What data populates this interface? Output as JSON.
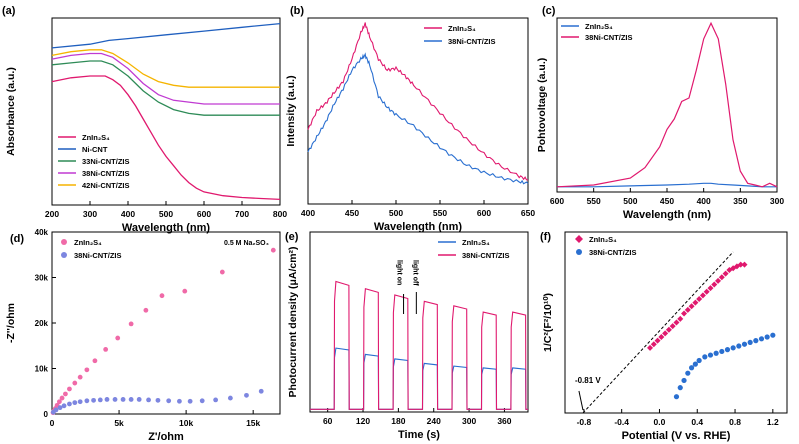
{
  "panels": [
    {
      "letter": "(a)",
      "xlabel": "Wavelength (nm)",
      "ylabel": "Absorbance (a.u.)",
      "xticks": [
        "200",
        "300",
        "400",
        "500",
        "600",
        "700",
        "800"
      ],
      "yticks": []
    },
    {
      "letter": "(b)",
      "xlabel": "Wavelength (nm)",
      "ylabel": "Intensity (a.u.)",
      "xticks": [
        "400",
        "450",
        "500",
        "550",
        "600",
        "650"
      ],
      "yticks": []
    },
    {
      "letter": "(c)",
      "xlabel": "Wavelength (nm)",
      "ylabel": "Pohtovoltage (a.u.)",
      "xticks": [
        "600",
        "550",
        "500",
        "450",
        "400",
        "350",
        "300"
      ],
      "yticks": []
    },
    {
      "letter": "(d)",
      "xlabel": "Z'/ohm",
      "ylabel": "-Z''/ohm",
      "xticks": [
        "0",
        "5k",
        "10k",
        "15k"
      ],
      "yticks": [
        "0",
        "10k",
        "20k",
        "30k",
        "40k"
      ]
    },
    {
      "letter": "(e)",
      "xlabel": "Time (s)",
      "ylabel": "Photocurrent density (μA/cm²)",
      "xticks": [
        "60",
        "120",
        "180",
        "240",
        "300",
        "360"
      ],
      "yticks": []
    },
    {
      "letter": "(f)",
      "xlabel": "Potential (V vs. RHE)",
      "ylabel": "1/C²(F²/10¹⁰)",
      "xticks": [
        "-0.8",
        "-0.4",
        "0.0",
        "0.4",
        "0.8",
        "1.2"
      ],
      "yticks": []
    }
  ],
  "colors": {
    "znins": "#e0196e",
    "cnt38": "#2a6fd0",
    "nicnt": "#1f5fbf",
    "cnt33": "#2e8b57",
    "cnt38a": "#c03ad2",
    "cnt42": "#f5b400",
    "d_znins": "#f06aa8",
    "d_cnt38": "#7d86e0"
  },
  "chart_data": [
    {
      "type": "line",
      "title": "(a)",
      "xlabel": "Wavelength (nm)",
      "ylabel": "Absorbance (a.u.)",
      "xlim": [
        200,
        800
      ],
      "ylim": [
        0,
        1
      ],
      "legend_placement": "bottom-left",
      "series": [
        {
          "name": "ZnIn2S4",
          "color_key": "znins",
          "x": [
            200,
            250,
            300,
            340,
            360,
            380,
            400,
            420,
            440,
            460,
            480,
            500,
            520,
            540,
            560,
            580,
            600,
            650,
            700,
            750,
            800
          ],
          "y": [
            0.66,
            0.68,
            0.69,
            0.69,
            0.67,
            0.64,
            0.59,
            0.53,
            0.46,
            0.39,
            0.32,
            0.26,
            0.21,
            0.16,
            0.12,
            0.09,
            0.07,
            0.05,
            0.04,
            0.035,
            0.03
          ]
        },
        {
          "name": "Ni-CNT",
          "color_key": "nicnt",
          "x": [
            200,
            300,
            350,
            400,
            500,
            600,
            700,
            800
          ],
          "y": [
            0.84,
            0.86,
            0.88,
            0.89,
            0.91,
            0.93,
            0.95,
            0.97
          ]
        },
        {
          "name": "33Ni-CNT/ZIS",
          "color_key": "cnt33",
          "x": [
            200,
            250,
            300,
            330,
            360,
            400,
            440,
            480,
            520,
            560,
            600,
            650,
            700,
            800
          ],
          "y": [
            0.75,
            0.76,
            0.77,
            0.77,
            0.75,
            0.69,
            0.61,
            0.55,
            0.51,
            0.49,
            0.48,
            0.48,
            0.48,
            0.48
          ]
        },
        {
          "name": "38Ni-CNT/ZIS",
          "color_key": "cnt38a",
          "x": [
            200,
            250,
            300,
            330,
            360,
            400,
            440,
            480,
            520,
            560,
            600,
            650,
            700,
            800
          ],
          "y": [
            0.78,
            0.8,
            0.81,
            0.81,
            0.79,
            0.73,
            0.65,
            0.59,
            0.56,
            0.55,
            0.54,
            0.54,
            0.54,
            0.54
          ]
        },
        {
          "name": "42Ni-CNT/ZIS",
          "color_key": "cnt42",
          "x": [
            200,
            250,
            300,
            330,
            360,
            400,
            440,
            480,
            520,
            560,
            600,
            650,
            700,
            800
          ],
          "y": [
            0.8,
            0.82,
            0.83,
            0.83,
            0.81,
            0.76,
            0.7,
            0.66,
            0.64,
            0.63,
            0.63,
            0.63,
            0.63,
            0.63
          ]
        }
      ]
    },
    {
      "type": "line",
      "title": "(b)",
      "xlabel": "Wavelength (nm)",
      "ylabel": "Intensity (a.u.)",
      "xlim": [
        400,
        650
      ],
      "ylim": [
        0,
        1
      ],
      "legend_placement": "top-right",
      "series": [
        {
          "name": "ZnIn2S4",
          "color_key": "znins",
          "x": [
            400,
            410,
            420,
            430,
            440,
            450,
            460,
            465,
            470,
            480,
            490,
            500,
            510,
            520,
            540,
            560,
            580,
            600,
            620,
            640,
            650
          ],
          "y": [
            0.4,
            0.5,
            0.54,
            0.6,
            0.66,
            0.78,
            0.92,
            0.97,
            0.9,
            0.78,
            0.72,
            0.73,
            0.69,
            0.64,
            0.54,
            0.44,
            0.35,
            0.27,
            0.2,
            0.15,
            0.13
          ]
        },
        {
          "name": "38Ni-CNT/ZIS",
          "color_key": "cnt38",
          "x": [
            400,
            410,
            420,
            430,
            440,
            450,
            460,
            465,
            470,
            480,
            490,
            500,
            520,
            540,
            560,
            580,
            600,
            620,
            640,
            650
          ],
          "y": [
            0.28,
            0.36,
            0.44,
            0.54,
            0.62,
            0.72,
            0.78,
            0.8,
            0.75,
            0.58,
            0.52,
            0.48,
            0.42,
            0.34,
            0.27,
            0.21,
            0.17,
            0.14,
            0.12,
            0.11
          ]
        }
      ]
    },
    {
      "type": "line",
      "title": "(c)",
      "xlabel": "Wavelength (nm)",
      "ylabel": "Pohtovoltage (a.u.)",
      "xlim": [
        600,
        300
      ],
      "ylim": [
        0,
        1
      ],
      "legend_placement": "top-left",
      "series": [
        {
          "name": "ZnIn2S4",
          "color_key": "cnt38",
          "x": [
            600,
            550,
            500,
            450,
            420,
            400,
            390,
            380,
            360,
            340,
            320,
            300
          ],
          "y": [
            0.03,
            0.03,
            0.035,
            0.04,
            0.045,
            0.05,
            0.05,
            0.045,
            0.04,
            0.035,
            0.03,
            0.03
          ]
        },
        {
          "name": "38Ni-CNT/ZIS",
          "color_key": "znins",
          "x": [
            600,
            550,
            500,
            480,
            460,
            450,
            440,
            430,
            420,
            410,
            400,
            390,
            380,
            370,
            360,
            350,
            340,
            330,
            320,
            310,
            300
          ],
          "y": [
            0.03,
            0.04,
            0.08,
            0.14,
            0.26,
            0.36,
            0.42,
            0.52,
            0.54,
            0.7,
            0.88,
            0.97,
            0.88,
            0.62,
            0.3,
            0.12,
            0.05,
            0.04,
            0.03,
            0.05,
            0.03
          ]
        }
      ]
    },
    {
      "type": "scatter",
      "title": "(d)",
      "xlabel": "Z'/ohm",
      "ylabel": "-Z''/ohm",
      "annotation": "0.5 M Na2SO4",
      "xlim": [
        0,
        17000
      ],
      "ylim": [
        0,
        40000
      ],
      "legend_placement": "top-left",
      "series": [
        {
          "name": "ZnIn2S4",
          "color_key": "d_znins",
          "x": [
            80,
            150,
            250,
            380,
            550,
            750,
            1000,
            1300,
            1700,
            2100,
            2600,
            3200,
            4000,
            4900,
            5900,
            7000,
            8200,
            9900,
            12700,
            16500
          ],
          "y": [
            300,
            700,
            1200,
            1900,
            2700,
            3500,
            4400,
            5500,
            6800,
            8100,
            9700,
            11700,
            14200,
            16700,
            19800,
            22800,
            26000,
            27000,
            31200,
            36000
          ]
        },
        {
          "name": "38Ni-CNT/ZIS",
          "color_key": "d_cnt38",
          "x": [
            100,
            300,
            600,
            900,
            1300,
            1700,
            2100,
            2600,
            3100,
            3600,
            4100,
            4700,
            5300,
            5900,
            6500,
            7200,
            7900,
            8700,
            9500,
            10300,
            11200,
            12200,
            13300,
            14500,
            15600
          ],
          "y": [
            400,
            900,
            1400,
            1800,
            2200,
            2500,
            2700,
            2900,
            3000,
            3100,
            3200,
            3200,
            3200,
            3200,
            3200,
            3100,
            3000,
            2900,
            2800,
            2800,
            2900,
            3100,
            3500,
            4100,
            5000
          ]
        }
      ]
    },
    {
      "type": "line",
      "title": "(e)",
      "xlabel": "Time (s)",
      "ylabel": "Photocurrent density (μA/cm²)",
      "xlim": [
        30,
        400
      ],
      "ylim": [
        0,
        20
      ],
      "annotations": [
        "light on",
        "light off"
      ],
      "legend_placement": "top-right",
      "series": [
        {
          "name": "ZnIn2S4",
          "color_key": "cnt38",
          "on_off": [
            [
              75,
              100
            ],
            [
              125,
              150
            ],
            [
              175,
              200
            ],
            [
              225,
              250
            ],
            [
              275,
              300
            ],
            [
              325,
              350
            ],
            [
              375,
              400
            ]
          ],
          "plateau": [
            7.1,
            6.4,
            5.9,
            5.4,
            5.1,
            4.9,
            4.9
          ],
          "baseline": 0.3
        },
        {
          "name": "38Ni-CNT/ZIS",
          "color_key": "znins",
          "on_off": [
            [
              75,
              100
            ],
            [
              125,
              150
            ],
            [
              175,
              200
            ],
            [
              225,
              250
            ],
            [
              275,
              300
            ],
            [
              325,
              350
            ],
            [
              375,
              400
            ]
          ],
          "plateau": [
            14.5,
            13.7,
            13.0,
            12.3,
            11.8,
            11.1,
            11.1
          ],
          "baseline": 0.3
        }
      ]
    },
    {
      "type": "scatter",
      "title": "(f)",
      "xlabel": "Potential (V vs. RHE)",
      "ylabel": "1/C²(F²/10¹⁰)",
      "annotation": "-0.81 V",
      "xlim": [
        -1.0,
        1.35
      ],
      "ylim": [
        0,
        10
      ],
      "legend_placement": "top-left",
      "series": [
        {
          "name": "ZnIn2S4",
          "color_key": "znins",
          "x": [
            -0.1,
            -0.06,
            -0.02,
            0.02,
            0.06,
            0.1,
            0.14,
            0.18,
            0.22,
            0.26,
            0.3,
            0.34,
            0.38,
            0.42,
            0.46,
            0.5,
            0.54,
            0.58,
            0.62,
            0.66,
            0.7,
            0.74,
            0.78,
            0.82,
            0.86,
            0.9
          ],
          "y": [
            3.6,
            3.8,
            4.0,
            4.2,
            4.4,
            4.6,
            4.8,
            5.0,
            5.2,
            5.5,
            5.7,
            5.9,
            6.1,
            6.3,
            6.5,
            6.7,
            6.9,
            7.1,
            7.3,
            7.5,
            7.7,
            7.9,
            8.0,
            8.1,
            8.2,
            8.2
          ]
        },
        {
          "name": "38Ni-CNT/ZIS",
          "color_key": "cnt38",
          "x": [
            0.18,
            0.22,
            0.26,
            0.3,
            0.34,
            0.38,
            0.42,
            0.48,
            0.54,
            0.6,
            0.66,
            0.72,
            0.78,
            0.84,
            0.9,
            0.96,
            1.02,
            1.08,
            1.14,
            1.2
          ],
          "y": [
            0.9,
            1.4,
            1.8,
            2.2,
            2.5,
            2.7,
            2.9,
            3.1,
            3.2,
            3.3,
            3.4,
            3.5,
            3.6,
            3.7,
            3.8,
            3.9,
            4.0,
            4.1,
            4.2,
            4.3
          ]
        }
      ]
    }
  ]
}
